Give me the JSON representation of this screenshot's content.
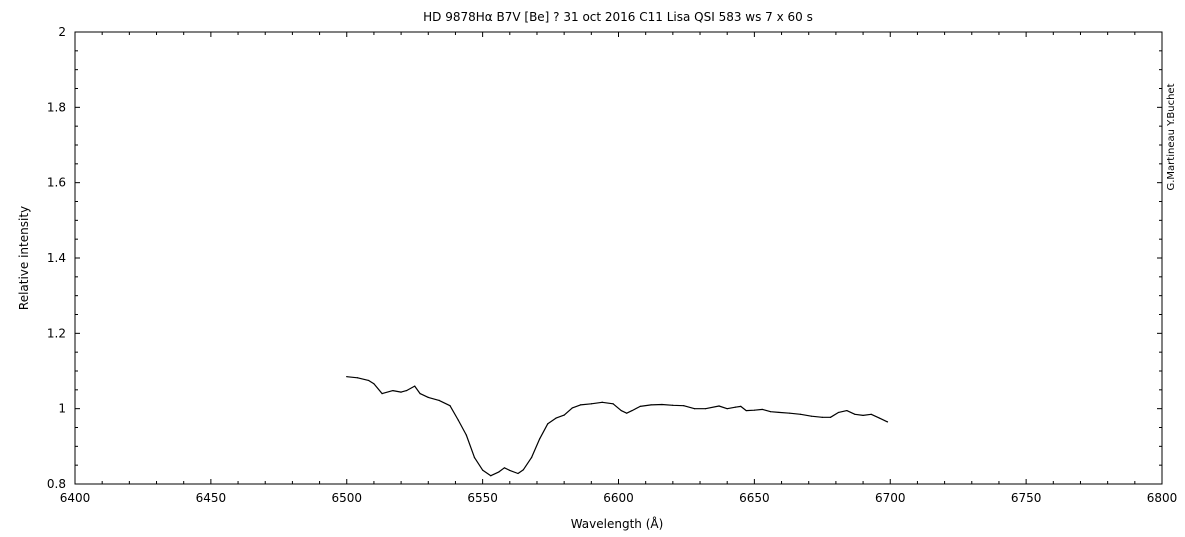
{
  "chart_data": {
    "type": "line",
    "title": "HD 9878Hα B7V  [Be] ?   31 oct 2016    C11 Lisa QSI 583 ws  7 x 60 s",
    "xlabel": "Wavelength (Å)",
    "ylabel": "Relative intensity",
    "credit": "G.Martineau  Y.Buchet",
    "xlim": [
      6400,
      6800
    ],
    "ylim": [
      0.8,
      2.0
    ],
    "x_ticks": [
      6400,
      6450,
      6500,
      6550,
      6600,
      6650,
      6700,
      6750,
      6800
    ],
    "y_ticks": [
      0.8,
      1.0,
      1.2,
      1.4,
      1.6,
      1.8,
      2.0
    ],
    "y_tick_labels": [
      "0.8",
      "1",
      "1.2",
      "1.4",
      "1.6",
      "1.8",
      "2"
    ],
    "grid": false,
    "series": [
      {
        "color": "#000000",
        "x": [
          6500,
          6504,
          6508,
          6510,
          6513,
          6517,
          6520,
          6522,
          6525,
          6527,
          6530,
          6534,
          6538,
          6541,
          6544,
          6547,
          6550,
          6553,
          6556,
          6558,
          6560,
          6563,
          6565,
          6568,
          6571,
          6574,
          6577,
          6580,
          6583,
          6586,
          6590,
          6594,
          6598,
          6601,
          6603,
          6605,
          6608,
          6612,
          6616,
          6620,
          6624,
          6628,
          6632,
          6637,
          6640,
          6643,
          6645,
          6647,
          6650,
          6653,
          6656,
          6659,
          6663,
          6667,
          6671,
          6675,
          6678,
          6681,
          6684,
          6687,
          6690,
          6693,
          6696,
          6699
        ],
        "y": [
          1.085,
          1.082,
          1.075,
          1.066,
          1.04,
          1.048,
          1.044,
          1.048,
          1.06,
          1.04,
          1.03,
          1.022,
          1.008,
          0.97,
          0.93,
          0.87,
          0.837,
          0.822,
          0.832,
          0.843,
          0.836,
          0.828,
          0.838,
          0.87,
          0.92,
          0.96,
          0.975,
          0.983,
          1.002,
          1.01,
          1.013,
          1.017,
          1.013,
          0.995,
          0.988,
          0.995,
          1.006,
          1.01,
          1.011,
          1.009,
          1.008,
          1.0,
          1.0,
          1.007,
          1.0,
          1.004,
          1.006,
          0.995,
          0.996,
          0.998,
          0.992,
          0.99,
          0.988,
          0.985,
          0.98,
          0.977,
          0.977,
          0.99,
          0.995,
          0.985,
          0.982,
          0.985,
          0.975,
          0.965
        ]
      }
    ]
  }
}
